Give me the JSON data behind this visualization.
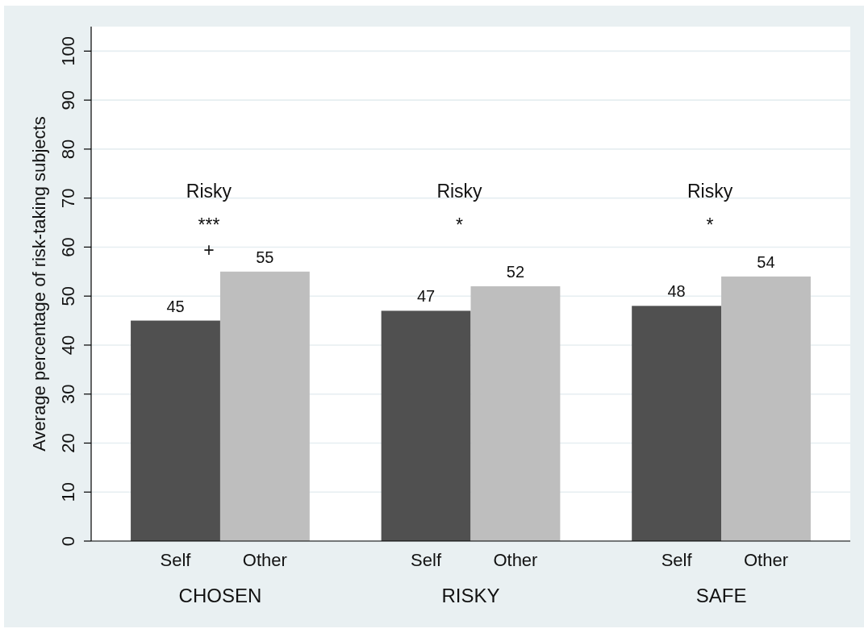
{
  "chart_data": {
    "type": "bar",
    "categories": [
      "CHOSEN",
      "RISKY",
      "SAFE"
    ],
    "series": [
      {
        "name": "Self",
        "color": "#505050",
        "values": [
          45,
          47,
          48
        ]
      },
      {
        "name": "Other",
        "color": "#bebebe",
        "values": [
          55,
          52,
          54
        ]
      }
    ],
    "ylabel": "Average percentage of risk-taking subjects",
    "ylim": [
      0,
      105
    ],
    "yticks": [
      0,
      10,
      20,
      30,
      40,
      50,
      60,
      70,
      80,
      90,
      100
    ],
    "grid": "y",
    "data_labels": true,
    "annotations": [
      "Risky",
      "Risky",
      "Risky",
      "***",
      "*",
      "*",
      "+"
    ]
  }
}
